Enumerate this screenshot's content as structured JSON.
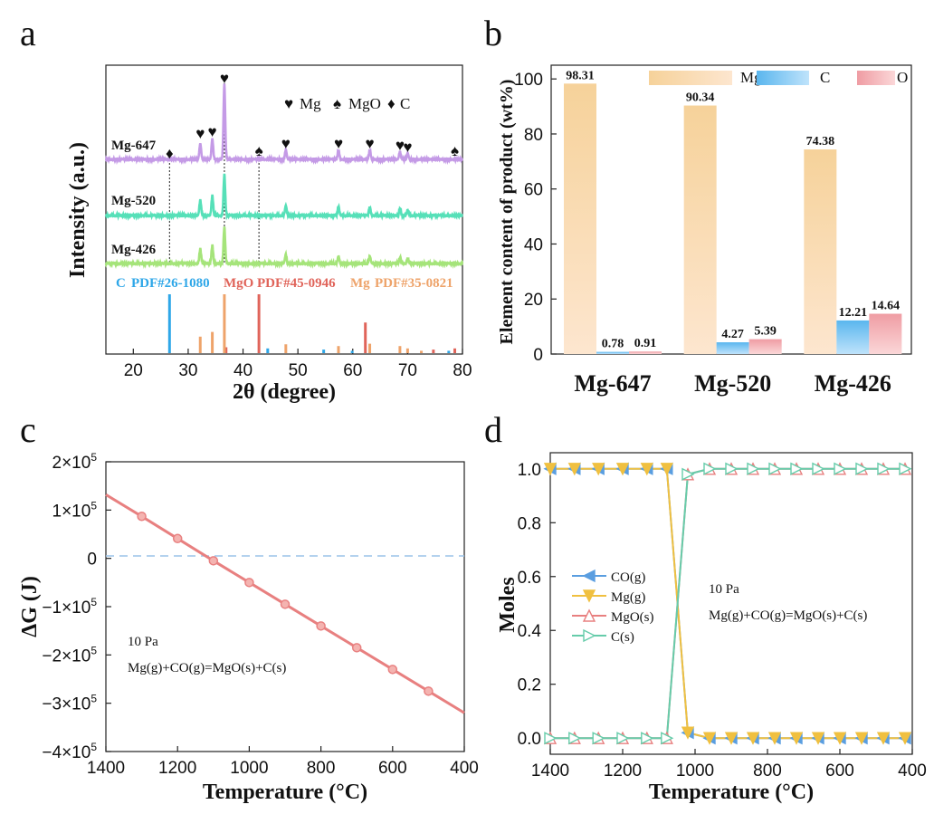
{
  "chart_data": [
    {
      "panel": "a",
      "type": "line",
      "xlabel": "2θ (degree)",
      "ylabel": "Intensity (a.u.)",
      "xlim": [
        15,
        80
      ],
      "xticks": [
        20,
        30,
        40,
        50,
        60,
        70,
        80
      ],
      "legend": [
        {
          "symbol": "♥",
          "label": "Mg"
        },
        {
          "symbol": "♠",
          "label": "MgO"
        },
        {
          "symbol": "♦",
          "label": "C"
        }
      ],
      "series": [
        {
          "name": "Mg-647",
          "color": "#c49ae6",
          "peaks": [
            [
              32.2,
              0.2
            ],
            [
              34.4,
              0.26
            ],
            [
              36.6,
              0.95
            ],
            [
              47.8,
              0.12
            ],
            [
              57.4,
              0.12
            ],
            [
              63.1,
              0.12
            ],
            [
              68.6,
              0.1
            ],
            [
              70.0,
              0.08
            ]
          ]
        },
        {
          "name": "Mg-520",
          "color": "#56e0b8",
          "peaks": [
            [
              32.2,
              0.17
            ],
            [
              34.4,
              0.22
            ],
            [
              36.6,
              0.45
            ],
            [
              47.8,
              0.11
            ],
            [
              57.4,
              0.1
            ],
            [
              63.1,
              0.09
            ],
            [
              68.6,
              0.07
            ],
            [
              70.0,
              0.06
            ]
          ]
        },
        {
          "name": "Mg-426",
          "color": "#a5e47a",
          "peaks": [
            [
              32.2,
              0.16
            ],
            [
              34.4,
              0.2
            ],
            [
              36.6,
              0.4
            ],
            [
              47.8,
              0.1
            ],
            [
              57.4,
              0.08
            ],
            [
              63.1,
              0.08
            ],
            [
              68.6,
              0.06
            ],
            [
              70.0,
              0.05
            ]
          ]
        }
      ],
      "peak_markers": [
        {
          "x": 26.6,
          "symbol": "♦"
        },
        {
          "x": 32.2,
          "symbol": "♥"
        },
        {
          "x": 34.4,
          "symbol": "♥"
        },
        {
          "x": 36.6,
          "symbol": "♥"
        },
        {
          "x": 42.9,
          "symbol": "♠"
        },
        {
          "x": 47.8,
          "symbol": "♥"
        },
        {
          "x": 57.4,
          "symbol": "♥"
        },
        {
          "x": 63.1,
          "symbol": "♥"
        },
        {
          "x": 68.6,
          "symbol": "♥"
        },
        {
          "x": 70.0,
          "symbol": "♥"
        },
        {
          "x": 78.6,
          "symbol": "♠"
        }
      ],
      "reference_cards": [
        {
          "name": "C",
          "pdf": "PDF#26-1080",
          "color": "#2fa7e8",
          "sticks": [
            [
              26.6,
              1.0
            ],
            [
              44.5,
              0.08
            ],
            [
              54.7,
              0.06
            ],
            [
              59.9,
              0.04
            ],
            [
              77.5,
              0.04
            ]
          ]
        },
        {
          "name": "MgO",
          "pdf": "PDF#45-0946",
          "color": "#e0645a",
          "sticks": [
            [
              36.9,
              0.1
            ],
            [
              42.9,
              1.0
            ],
            [
              62.3,
              0.52
            ],
            [
              74.7,
              0.06
            ],
            [
              78.6,
              0.08
            ]
          ]
        },
        {
          "name": "Mg",
          "pdf": "PDF#35-0821",
          "color": "#eea36a",
          "sticks": [
            [
              32.2,
              0.28
            ],
            [
              34.4,
              0.36
            ],
            [
              36.6,
              1.0
            ],
            [
              47.8,
              0.15
            ],
            [
              57.4,
              0.12
            ],
            [
              63.1,
              0.16
            ],
            [
              68.6,
              0.12
            ],
            [
              70.0,
              0.08
            ],
            [
              72.5,
              0.04
            ]
          ]
        }
      ]
    },
    {
      "panel": "b",
      "type": "bar",
      "ylabel": "Element content of product (wt%)",
      "ylim": [
        0,
        105
      ],
      "yticks": [
        0,
        20,
        40,
        60,
        80,
        100
      ],
      "categories": [
        "Mg-647",
        "Mg-520",
        "Mg-426"
      ],
      "series": [
        {
          "name": "Mg",
          "color_top": "#f6d29a",
          "color_bottom": "#fde6cf",
          "values": [
            98.31,
            90.34,
            74.38
          ],
          "labels": [
            "98.31",
            "90.34",
            "74.38"
          ]
        },
        {
          "name": "C",
          "color_top": "#5ab6ee",
          "color_bottom": "#bfe3fb",
          "values": [
            0.78,
            4.27,
            12.21
          ],
          "labels": [
            "0.78",
            "4.27",
            "12.21"
          ]
        },
        {
          "name": "O",
          "color_top": "#ef9ca3",
          "color_bottom": "#fbd7d8",
          "values": [
            0.91,
            5.39,
            14.64
          ],
          "labels": [
            "0.91",
            "5.39",
            "14.64"
          ]
        }
      ]
    },
    {
      "panel": "c",
      "type": "line",
      "xlabel": "Temperature (°C)",
      "ylabel": "ΔG (J)",
      "xlim": [
        1400,
        400
      ],
      "ylim": [
        -400000,
        200000
      ],
      "xticks": [
        1400,
        1200,
        1000,
        800,
        600,
        400
      ],
      "yticks": [
        {
          "value": 200000,
          "mant": "2×10",
          "exp": "5"
        },
        {
          "value": 100000,
          "mant": "1×10",
          "exp": "5"
        },
        {
          "value": 0,
          "mant": "0",
          "exp": ""
        },
        {
          "value": -100000,
          "mant": "−1×10",
          "exp": "5"
        },
        {
          "value": -200000,
          "mant": "−2×10",
          "exp": "5"
        },
        {
          "value": -300000,
          "mant": "−3×10",
          "exp": "5"
        },
        {
          "value": -400000,
          "mant": "−4×10",
          "exp": "5"
        }
      ],
      "annotations": [
        "10 Pa",
        "Mg(g)+CO(g)=MgO(s)+C(s)"
      ],
      "series": [
        {
          "name": "ΔG",
          "color": "#e88080",
          "x": [
            1400,
            1300,
            1200,
            1100,
            1000,
            900,
            800,
            700,
            600,
            500,
            400
          ],
          "y": [
            132000,
            87000,
            41000,
            -5000,
            -50000,
            -95000,
            -140000,
            -185000,
            -230000,
            -275000,
            -320000
          ]
        }
      ]
    },
    {
      "panel": "d",
      "type": "line",
      "xlabel": "Temperature (°C)",
      "ylabel": "Moles",
      "xlim": [
        1400,
        400
      ],
      "ylim": [
        -0.06,
        1.06
      ],
      "xticks": [
        1400,
        1200,
        1000,
        800,
        600,
        400
      ],
      "yticks": [
        "0.0",
        "0.2",
        "0.4",
        "0.6",
        "0.8",
        "1.0"
      ],
      "annotations": [
        "10 Pa",
        "Mg(g)+CO(g)=MgO(s)+C(s)"
      ],
      "series": [
        {
          "name": "CO(g)",
          "marker": "triangle-left",
          "color": "#5a9ee0",
          "x": [
            1400,
            1333,
            1267,
            1200,
            1133,
            1078,
            1020,
            960,
            900,
            840,
            780,
            720,
            660,
            600,
            540,
            480,
            420
          ],
          "y": [
            1.0,
            1.0,
            1.0,
            1.0,
            1.0,
            1.0,
            0.02,
            0.0,
            0.0,
            0.0,
            0.0,
            0.0,
            0.0,
            0.0,
            0.0,
            0.0,
            0.0
          ]
        },
        {
          "name": "Mg(g)",
          "marker": "triangle-down",
          "color": "#f0c040",
          "x": [
            1400,
            1333,
            1267,
            1200,
            1133,
            1078,
            1020,
            960,
            900,
            840,
            780,
            720,
            660,
            600,
            540,
            480,
            420
          ],
          "y": [
            1.0,
            1.0,
            1.0,
            1.0,
            1.0,
            1.0,
            0.02,
            0.0,
            0.0,
            0.0,
            0.0,
            0.0,
            0.0,
            0.0,
            0.0,
            0.0,
            0.0
          ]
        },
        {
          "name": "MgO(s)",
          "marker": "triangle-up-open",
          "color": "#e88080",
          "x": [
            1400,
            1333,
            1267,
            1200,
            1133,
            1078,
            1020,
            960,
            900,
            840,
            780,
            720,
            660,
            600,
            540,
            480,
            420
          ],
          "y": [
            0.0,
            0.0,
            0.0,
            0.0,
            0.0,
            0.0,
            0.98,
            1.0,
            1.0,
            1.0,
            1.0,
            1.0,
            1.0,
            1.0,
            1.0,
            1.0,
            1.0
          ]
        },
        {
          "name": "C(s)",
          "marker": "triangle-right-open",
          "color": "#66ccaa",
          "x": [
            1400,
            1333,
            1267,
            1200,
            1133,
            1078,
            1020,
            960,
            900,
            840,
            780,
            720,
            660,
            600,
            540,
            480,
            420
          ],
          "y": [
            0.0,
            0.0,
            0.0,
            0.0,
            0.0,
            0.0,
            0.98,
            1.0,
            1.0,
            1.0,
            1.0,
            1.0,
            1.0,
            1.0,
            1.0,
            1.0,
            1.0
          ]
        }
      ]
    }
  ],
  "panel_labels": [
    "a",
    "b",
    "c",
    "d"
  ]
}
